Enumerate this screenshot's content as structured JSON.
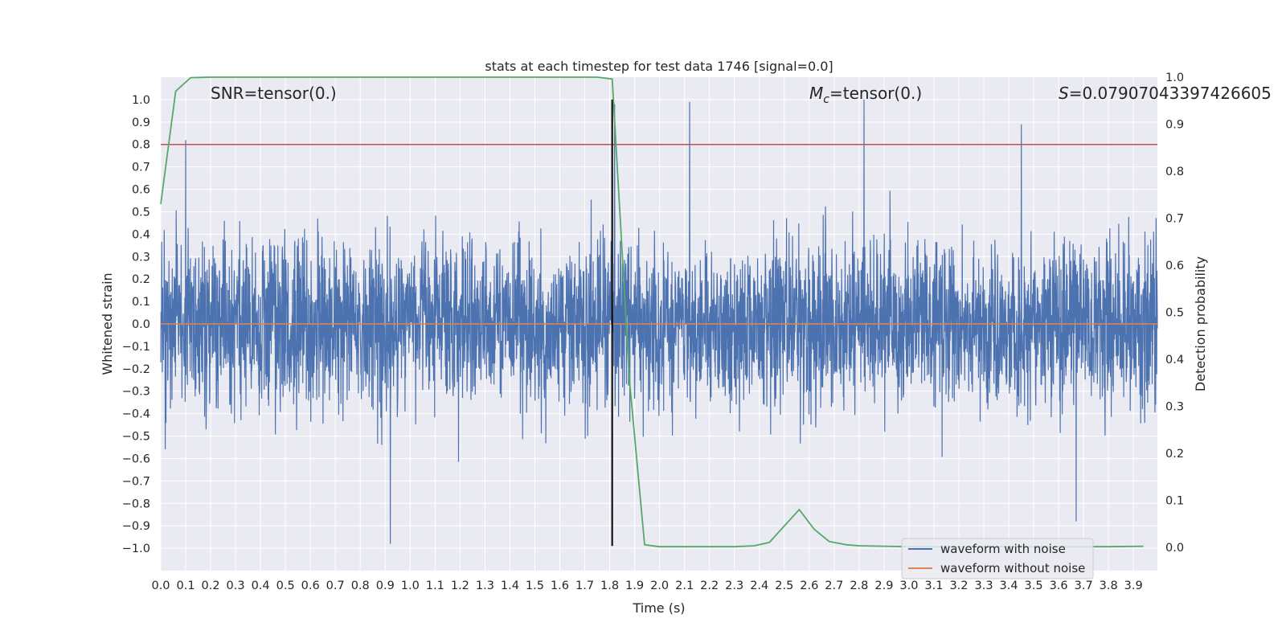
{
  "chart_data": {
    "type": "line",
    "title": "stats at each timestep for test data 1746 [signal=0.0]",
    "xlabel": "Time (s)",
    "ylabel": "Whitened strain",
    "ylabel_right": "Detection probability",
    "xlim": [
      0.0,
      3.996
    ],
    "ylim": [
      -1.1,
      1.1
    ],
    "ylim_right": [
      -0.05,
      1.0
    ],
    "x_ticks": [
      "0.0",
      "0.1",
      "0.2",
      "0.3",
      "0.4",
      "0.5",
      "0.6",
      "0.7",
      "0.8",
      "0.9",
      "1.0",
      "1.1",
      "1.2",
      "1.3",
      "1.4",
      "1.5",
      "1.6",
      "1.7",
      "1.8",
      "1.9",
      "2.0",
      "2.1",
      "2.2",
      "2.3",
      "2.4",
      "2.5",
      "2.6",
      "2.7",
      "2.8",
      "2.9",
      "3.0",
      "3.1",
      "3.2",
      "3.3",
      "3.4",
      "3.5",
      "3.6",
      "3.7",
      "3.8",
      "3.9"
    ],
    "y_ticks": [
      "1.0",
      "0.9",
      "0.8",
      "0.7",
      "0.6",
      "0.5",
      "0.4",
      "0.3",
      "0.2",
      "0.1",
      "0.0",
      "−0.1",
      "−0.2",
      "−0.3",
      "−0.4",
      "−0.5",
      "−0.6",
      "−0.7",
      "−0.8",
      "−0.9",
      "−1.0"
    ],
    "y_right_ticks": [
      "1.0",
      "0.9",
      "0.8",
      "0.7",
      "0.6",
      "0.5",
      "0.4",
      "0.3",
      "0.2",
      "0.1",
      "0.0"
    ],
    "grid": true,
    "legend_position": "lower-right",
    "annotations": {
      "snr": "SNR=tensor(0.)",
      "mc_symbol": "M",
      "mc_sub": "c",
      "mc_value": "=tensor(0.)",
      "s_symbol": "S",
      "s_value": "=0.07907043397426605"
    },
    "series": [
      {
        "name": "waveform with noise",
        "color": "#4c72b0",
        "axis": "left",
        "description_kind": "dense whitened strain noise, approx. uniform sampling over 0 to 4 s, amplitude mostly within ±0.6 with spikes to about ±1.0",
        "peaks": [
          {
            "x": 0.1,
            "y": 0.82
          },
          {
            "x": 0.92,
            "y": -0.98
          },
          {
            "x": 1.82,
            "y": 0.98
          },
          {
            "x": 2.12,
            "y": 0.99
          },
          {
            "x": 2.82,
            "y": 1.0
          },
          {
            "x": 3.45,
            "y": 0.89
          },
          {
            "x": 3.67,
            "y": -0.88
          }
        ]
      },
      {
        "name": "waveform without noise",
        "color": "#dd8452",
        "axis": "left",
        "x": [
          0.0,
          3.996
        ],
        "y": [
          0.0,
          0.0
        ]
      },
      {
        "color": "#55a868",
        "axis": "right",
        "x": [
          0.0,
          0.06,
          0.12,
          0.2,
          0.5,
          1.0,
          1.5,
          1.75,
          1.81,
          1.88,
          1.94,
          2.0,
          2.1,
          2.2,
          2.3,
          2.38,
          2.44,
          2.5,
          2.56,
          2.62,
          2.68,
          2.75,
          2.8,
          2.9,
          3.0,
          3.2,
          3.4,
          3.6,
          3.8,
          3.94
        ],
        "y": [
          0.73,
          0.97,
          0.999,
          1.0,
          1.0,
          1.0,
          1.0,
          1.0,
          0.996,
          0.35,
          0.005,
          0.001,
          0.001,
          0.001,
          0.001,
          0.003,
          0.01,
          0.045,
          0.08,
          0.038,
          0.012,
          0.005,
          0.003,
          0.002,
          0.001,
          0.001,
          0.001,
          0.001,
          0.001,
          0.002
        ]
      },
      {
        "color": "#c44e52",
        "axis": "left",
        "kind": "horizontal-line",
        "y": 0.8
      },
      {
        "color": "#000000",
        "axis": "left",
        "kind": "vertical-line",
        "x": 1.81,
        "y": [
          -0.99,
          1.0
        ]
      }
    ],
    "legend": [
      {
        "label": "waveform with noise",
        "color": "#4c72b0"
      },
      {
        "label": "waveform without noise",
        "color": "#dd8452"
      }
    ]
  }
}
